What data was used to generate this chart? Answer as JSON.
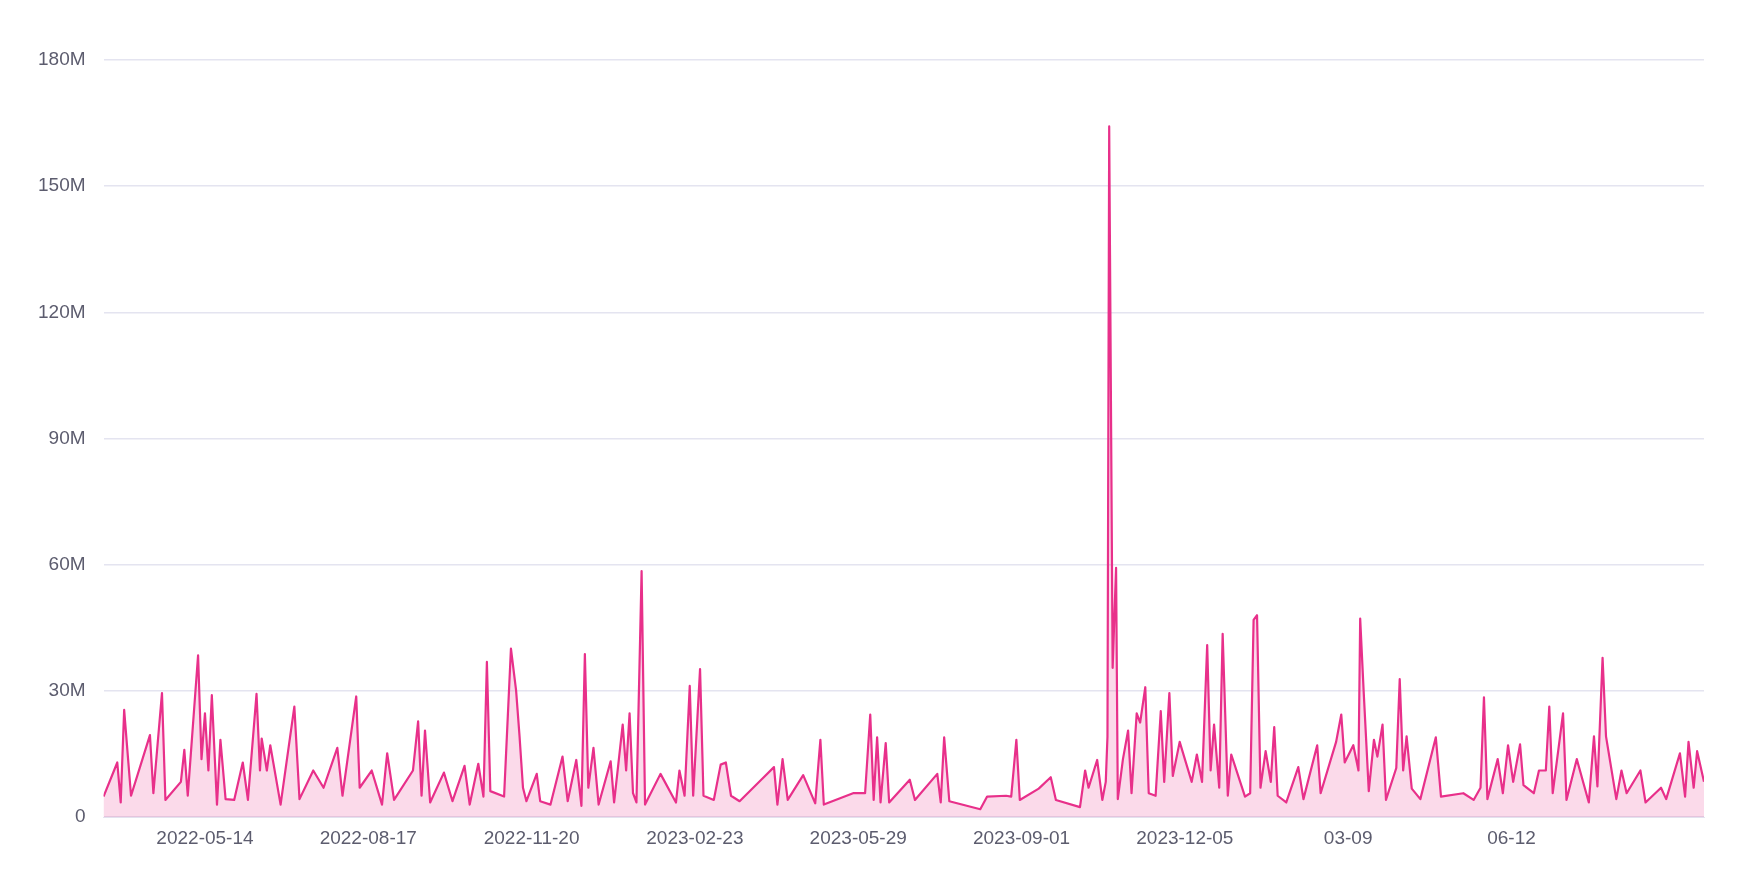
{
  "chart_data": {
    "type": "area",
    "grid": "y",
    "xlim": [
      "2022-03-16",
      "2024-10-02"
    ],
    "xticks": [
      {
        "value": "2022-05-14",
        "label": "2022-05-14"
      },
      {
        "value": "2022-08-17",
        "label": "2022-08-17"
      },
      {
        "value": "2022-11-20",
        "label": "2022-11-20"
      },
      {
        "value": "2023-02-23",
        "label": "2023-02-23"
      },
      {
        "value": "2023-05-29",
        "label": "2023-05-29"
      },
      {
        "value": "2023-09-01",
        "label": "2023-09-01"
      },
      {
        "value": "2023-12-05",
        "label": "2023-12-05"
      },
      {
        "value": "2024-03-09",
        "label": "03-09"
      },
      {
        "value": "2024-06-12",
        "label": "06-12"
      }
    ],
    "ylim": [
      0,
      180000000
    ],
    "yticks": [
      0,
      {
        "value": 30000000,
        "label": "30M"
      },
      {
        "value": 60000000,
        "label": "60M"
      },
      {
        "value": 90000000,
        "label": "90M"
      },
      {
        "value": 120000000,
        "label": "120M"
      },
      {
        "value": 150000000,
        "label": "150M"
      },
      {
        "value": 180000000,
        "label": "180M"
      }
    ],
    "x": [
      "2022-03-16",
      "2022-03-24",
      "2022-03-26",
      "2022-03-28",
      "2022-04-01",
      "2022-04-12",
      "2022-04-14",
      "2022-04-19",
      "2022-04-21",
      "2022-04-30",
      "2022-05-02",
      "2022-05-04",
      "2022-05-10",
      "2022-05-12",
      "2022-05-14",
      "2022-05-16",
      "2022-05-18",
      "2022-05-21",
      "2022-05-23",
      "2022-05-26",
      "2022-05-31",
      "2022-06-05",
      "2022-06-08",
      "2022-06-13",
      "2022-06-15",
      "2022-06-16",
      "2022-06-19",
      "2022-06-21",
      "2022-06-27",
      "2022-07-05",
      "2022-07-08",
      "2022-07-16",
      "2022-07-22",
      "2022-07-30",
      "2022-08-02",
      "2022-08-10",
      "2022-08-12",
      "2022-08-19",
      "2022-08-25",
      "2022-08-28",
      "2022-09-01",
      "2022-09-12",
      "2022-09-15",
      "2022-09-17",
      "2022-09-19",
      "2022-09-22",
      "2022-09-30",
      "2022-10-05",
      "2022-10-12",
      "2022-10-15",
      "2022-10-20",
      "2022-10-23",
      "2022-10-25",
      "2022-10-27",
      "2022-11-04",
      "2022-11-08",
      "2022-11-11",
      "2022-11-13",
      "2022-11-15",
      "2022-11-17",
      "2022-11-23",
      "2022-11-25",
      "2022-12-01",
      "2022-12-08",
      "2022-12-11",
      "2022-12-16",
      "2022-12-19",
      "2022-12-21",
      "2022-12-23",
      "2022-12-26",
      "2022-12-29",
      "2023-01-05",
      "2023-01-07",
      "2023-01-12",
      "2023-01-14",
      "2023-01-16",
      "2023-01-18",
      "2023-01-20",
      "2023-01-23",
      "2023-01-25",
      "2023-02-03",
      "2023-02-12",
      "2023-02-14",
      "2023-02-17",
      "2023-02-20",
      "2023-02-22",
      "2023-02-26",
      "2023-02-28",
      "2023-03-06",
      "2023-03-10",
      "2023-03-13",
      "2023-03-16",
      "2023-03-21",
      "2023-04-10",
      "2023-04-12",
      "2023-04-15",
      "2023-04-18",
      "2023-04-27",
      "2023-05-04",
      "2023-05-07",
      "2023-05-09",
      "2023-05-26",
      "2023-06-02",
      "2023-06-05",
      "2023-06-07",
      "2023-06-09",
      "2023-06-11",
      "2023-06-14",
      "2023-06-16",
      "2023-06-28",
      "2023-07-01",
      "2023-07-14",
      "2023-07-16",
      "2023-07-18",
      "2023-07-21",
      "2023-08-08",
      "2023-08-12",
      "2023-08-23",
      "2023-08-26",
      "2023-08-29",
      "2023-08-31",
      "2023-09-11",
      "2023-09-18",
      "2023-09-21",
      "2023-10-05",
      "2023-10-08",
      "2023-10-10",
      "2023-10-15",
      "2023-10-18",
      "2023-10-20",
      "2023-10-21",
      "2023-10-22",
      "2023-10-24",
      "2023-10-26",
      "2023-10-27",
      "2023-10-30",
      "2023-11-02",
      "2023-11-04",
      "2023-11-07",
      "2023-11-09",
      "2023-11-12",
      "2023-11-14",
      "2023-11-18",
      "2023-11-21",
      "2023-11-23",
      "2023-11-26",
      "2023-11-28",
      "2023-12-02",
      "2023-12-09",
      "2023-12-12",
      "2023-12-15",
      "2023-12-18",
      "2023-12-20",
      "2023-12-22",
      "2023-12-25",
      "2023-12-27",
      "2023-12-30",
      "2024-01-01",
      "2024-01-09",
      "2024-01-12",
      "2024-01-14",
      "2024-01-16",
      "2024-01-18",
      "2024-01-21",
      "2024-01-24",
      "2024-01-26",
      "2024-01-28",
      "2024-02-02",
      "2024-02-09",
      "2024-02-12",
      "2024-02-20",
      "2024-02-22",
      "2024-03-02",
      "2024-03-05",
      "2024-03-07",
      "2024-03-12",
      "2024-03-15",
      "2024-03-16",
      "2024-03-18",
      "2024-03-21",
      "2024-03-24",
      "2024-03-26",
      "2024-03-29",
      "2024-03-31",
      "2024-04-06",
      "2024-04-08",
      "2024-04-10",
      "2024-04-12",
      "2024-04-15",
      "2024-04-20",
      "2024-04-29",
      "2024-05-02",
      "2024-05-15",
      "2024-05-21",
      "2024-05-25",
      "2024-05-27",
      "2024-05-29",
      "2024-06-04",
      "2024-06-07",
      "2024-06-10",
      "2024-06-13",
      "2024-06-17",
      "2024-06-19",
      "2024-06-25",
      "2024-06-28",
      "2024-07-02",
      "2024-07-04",
      "2024-07-06",
      "2024-07-12",
      "2024-07-14",
      "2024-07-20",
      "2024-07-27",
      "2024-07-30",
      "2024-08-01",
      "2024-08-04",
      "2024-08-06",
      "2024-08-12",
      "2024-08-15",
      "2024-08-18",
      "2024-08-26",
      "2024-08-29",
      "2024-09-07",
      "2024-09-10",
      "2024-09-18",
      "2024-09-21",
      "2024-09-23",
      "2024-09-26",
      "2024-09-28",
      "2024-10-02"
    ],
    "series": [
      {
        "color": "#e8308a",
        "values": [
          4900000,
          13000000,
          3500000,
          25500000,
          5100000,
          19500000,
          5700000,
          29500000,
          4100000,
          8400000,
          16000000,
          5100000,
          38500000,
          13800000,
          24700000,
          11100000,
          29000000,
          3000000,
          18400000,
          4300000,
          4100000,
          13000000,
          4100000,
          29300000,
          11100000,
          18700000,
          11100000,
          17100000,
          3000000,
          26300000,
          4300000,
          11100000,
          7000000,
          16500000,
          5100000,
          28700000,
          7000000,
          11100000,
          3000000,
          15200000,
          4100000,
          11100000,
          22800000,
          5100000,
          20600000,
          3500000,
          10600000,
          3800000,
          12200000,
          3000000,
          12700000,
          4900000,
          36900000,
          6200000,
          4900000,
          40100000,
          30100000,
          19200000,
          7000000,
          3800000,
          10300000,
          3800000,
          3000000,
          14400000,
          3800000,
          13600000,
          2700000,
          38800000,
          7000000,
          16500000,
          3000000,
          13300000,
          3500000,
          22000000,
          11100000,
          24700000,
          5700000,
          3500000,
          58500000,
          3000000,
          10300000,
          3500000,
          11100000,
          5100000,
          31200000,
          5100000,
          35200000,
          5100000,
          4100000,
          12500000,
          13000000,
          5100000,
          3800000,
          11900000,
          3000000,
          13800000,
          4100000,
          10000000,
          3300000,
          18400000,
          3000000,
          5700000,
          5700000,
          24400000,
          4100000,
          19000000,
          3500000,
          17600000,
          3500000,
          8900000,
          4100000,
          10300000,
          3500000,
          19000000,
          3800000,
          1900000,
          4900000,
          5100000,
          4900000,
          18400000,
          4100000,
          6800000,
          9500000,
          4100000,
          2400000,
          11100000,
          7000000,
          13600000,
          4100000,
          8400000,
          19200000,
          164200000,
          35500000,
          59300000,
          4300000,
          13800000,
          20600000,
          5700000,
          24700000,
          22500000,
          30900000,
          5700000,
          5100000,
          25200000,
          8400000,
          29500000,
          9800000,
          17900000,
          8400000,
          14900000,
          8400000,
          40900000,
          11100000,
          22000000,
          7000000,
          43600000,
          5100000,
          14900000,
          4900000,
          5700000,
          46900000,
          48000000,
          7000000,
          15700000,
          8400000,
          21400000,
          5100000,
          3500000,
          11900000,
          4300000,
          17100000,
          5700000,
          17900000,
          24400000,
          13000000,
          17100000,
          11100000,
          47200000,
          30100000,
          6200000,
          18400000,
          14400000,
          22000000,
          4100000,
          11700000,
          32800000,
          11100000,
          19200000,
          6800000,
          4300000,
          19000000,
          4900000,
          5700000,
          4100000,
          7000000,
          28500000,
          4300000,
          13800000,
          5700000,
          17100000,
          8400000,
          17300000,
          7600000,
          5700000,
          11100000,
          11100000,
          26300000,
          5700000,
          24700000,
          4100000,
          13800000,
          3500000,
          19200000,
          7300000,
          37900000,
          19200000,
          4300000,
          11100000,
          5700000,
          11100000,
          3500000,
          7000000,
          4300000,
          15200000,
          4900000,
          17900000,
          7000000,
          15700000,
          8400000
        ]
      }
    ]
  }
}
